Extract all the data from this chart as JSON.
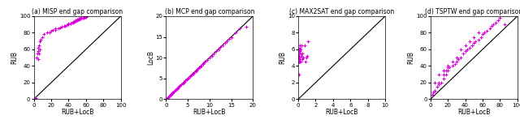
{
  "panels": [
    {
      "label": "(a) MISP end gap comparison",
      "xlabel": "RUB+LocB",
      "ylabel": "RUB",
      "xlim": [
        0,
        100
      ],
      "ylim": [
        0,
        100
      ],
      "xticks": [
        0,
        20,
        40,
        60,
        80,
        100
      ],
      "yticks": [
        0,
        20,
        40,
        60,
        80,
        100
      ],
      "px": [
        3,
        4,
        5,
        5,
        5,
        6,
        6,
        7,
        7,
        8,
        10,
        12,
        15,
        18,
        20,
        22,
        25,
        25,
        28,
        30,
        32,
        35,
        36,
        38,
        40,
        40,
        42,
        43,
        45,
        45,
        46,
        47,
        48,
        48,
        49,
        50,
        50,
        51,
        52,
        52,
        53,
        53,
        54,
        55,
        55,
        56,
        57,
        58,
        58,
        59,
        60,
        60,
        1,
        2
      ],
      "py": [
        50,
        55,
        48,
        58,
        62,
        55,
        65,
        60,
        70,
        72,
        75,
        78,
        80,
        80,
        82,
        83,
        83,
        85,
        85,
        86,
        87,
        88,
        88,
        89,
        90,
        91,
        91,
        92,
        92,
        93,
        93,
        94,
        94,
        95,
        95,
        95,
        96,
        96,
        97,
        96,
        97,
        97,
        97,
        98,
        98,
        98,
        98,
        99,
        99,
        99,
        99,
        100,
        1,
        1
      ]
    },
    {
      "label": "(b) MCP end gap comparison",
      "xlabel": "RUB+LocB",
      "ylabel": "LocB",
      "xlim": [
        0,
        20
      ],
      "ylim": [
        0,
        20
      ],
      "xticks": [
        0,
        5,
        10,
        15,
        20
      ],
      "yticks": [
        0,
        5,
        10,
        15,
        20
      ],
      "px": [
        0.3,
        0.5,
        0.7,
        0.8,
        1.0,
        1.0,
        1.2,
        1.3,
        1.5,
        1.5,
        1.8,
        2.0,
        2.2,
        2.5,
        2.5,
        2.8,
        3.0,
        3.2,
        3.5,
        3.8,
        4.0,
        4.2,
        4.5,
        4.8,
        5.0,
        5.2,
        5.5,
        5.8,
        6.0,
        6.2,
        6.5,
        6.8,
        7.0,
        7.2,
        7.5,
        7.8,
        8.0,
        8.2,
        8.5,
        8.8,
        9.0,
        9.5,
        10.0,
        10.5,
        11.0,
        11.5,
        12.0,
        12.5,
        13.0,
        13.5,
        14.0,
        14.5,
        15.0,
        16.0,
        17.0,
        18.5
      ],
      "py": [
        0.3,
        0.5,
        0.7,
        0.8,
        1.0,
        1.1,
        1.2,
        1.3,
        1.5,
        1.6,
        1.8,
        2.0,
        2.2,
        2.5,
        2.6,
        2.8,
        3.0,
        3.2,
        3.5,
        3.8,
        4.0,
        4.2,
        4.5,
        4.8,
        5.0,
        5.2,
        5.5,
        5.8,
        6.0,
        6.2,
        6.5,
        6.8,
        7.0,
        7.2,
        7.5,
        7.7,
        8.0,
        8.0,
        8.5,
        8.8,
        9.0,
        9.5,
        10.0,
        10.5,
        11.0,
        11.5,
        12.0,
        12.5,
        13.0,
        13.5,
        14.0,
        14.5,
        15.0,
        16.0,
        17.0,
        17.5
      ]
    },
    {
      "label": "(c) MAX2SAT end gap comparison",
      "xlabel": "RUB+LocB",
      "ylabel": "RUB",
      "xlim": [
        0,
        10
      ],
      "ylim": [
        0,
        10
      ],
      "xticks": [
        0,
        2,
        4,
        6,
        8,
        10
      ],
      "yticks": [
        0,
        2,
        4,
        6,
        8,
        10
      ],
      "px": [
        0.05,
        0.07,
        0.08,
        0.1,
        0.1,
        0.1,
        0.12,
        0.15,
        0.15,
        0.18,
        0.2,
        0.2,
        0.25,
        0.3,
        0.3,
        0.35,
        0.4,
        0.45,
        0.5,
        0.6,
        0.7,
        0.8,
        0.9,
        1.0,
        1.1,
        0.05,
        0.08,
        0.1,
        0.12,
        0.15,
        0.2
      ],
      "py": [
        4.5,
        5.0,
        5.5,
        4.8,
        5.2,
        6.0,
        5.5,
        6.2,
        4.5,
        5.8,
        5.0,
        6.5,
        5.5,
        4.5,
        6.0,
        6.5,
        5.2,
        5.5,
        4.8,
        5.0,
        6.5,
        4.5,
        5.0,
        5.2,
        7.0,
        3.0,
        4.5,
        5.0,
        5.5,
        4.8,
        6.0
      ]
    },
    {
      "label": "(d) TSPTW end gap comparison",
      "xlabel": "RUB+LocB",
      "ylabel": "RUB",
      "xlim": [
        0,
        100
      ],
      "ylim": [
        0,
        100
      ],
      "xticks": [
        0,
        20,
        40,
        60,
        80,
        100
      ],
      "yticks": [
        0,
        20,
        40,
        60,
        80,
        100
      ],
      "px": [
        5,
        8,
        10,
        12,
        15,
        18,
        20,
        22,
        25,
        28,
        30,
        32,
        35,
        38,
        40,
        42,
        45,
        48,
        50,
        52,
        55,
        58,
        60,
        62,
        65,
        68,
        70,
        72,
        75,
        78,
        80,
        5,
        10,
        15,
        20,
        25,
        30,
        35,
        40,
        45,
        50,
        55,
        2,
        5,
        10,
        15,
        18,
        20,
        85,
        3
      ],
      "py": [
        10,
        15,
        18,
        20,
        25,
        30,
        35,
        38,
        40,
        42,
        45,
        48,
        50,
        55,
        58,
        60,
        62,
        65,
        68,
        70,
        72,
        75,
        78,
        80,
        82,
        85,
        88,
        90,
        92,
        95,
        98,
        20,
        30,
        35,
        40,
        45,
        50,
        60,
        65,
        70,
        75,
        80,
        5,
        10,
        20,
        30,
        35,
        38,
        90,
        8
      ]
    }
  ],
  "marker_color": "#dd00dd",
  "marker": "+",
  "markersize": 3.5,
  "linewidth": 0.7,
  "line_color": "black",
  "line_style": "solid"
}
